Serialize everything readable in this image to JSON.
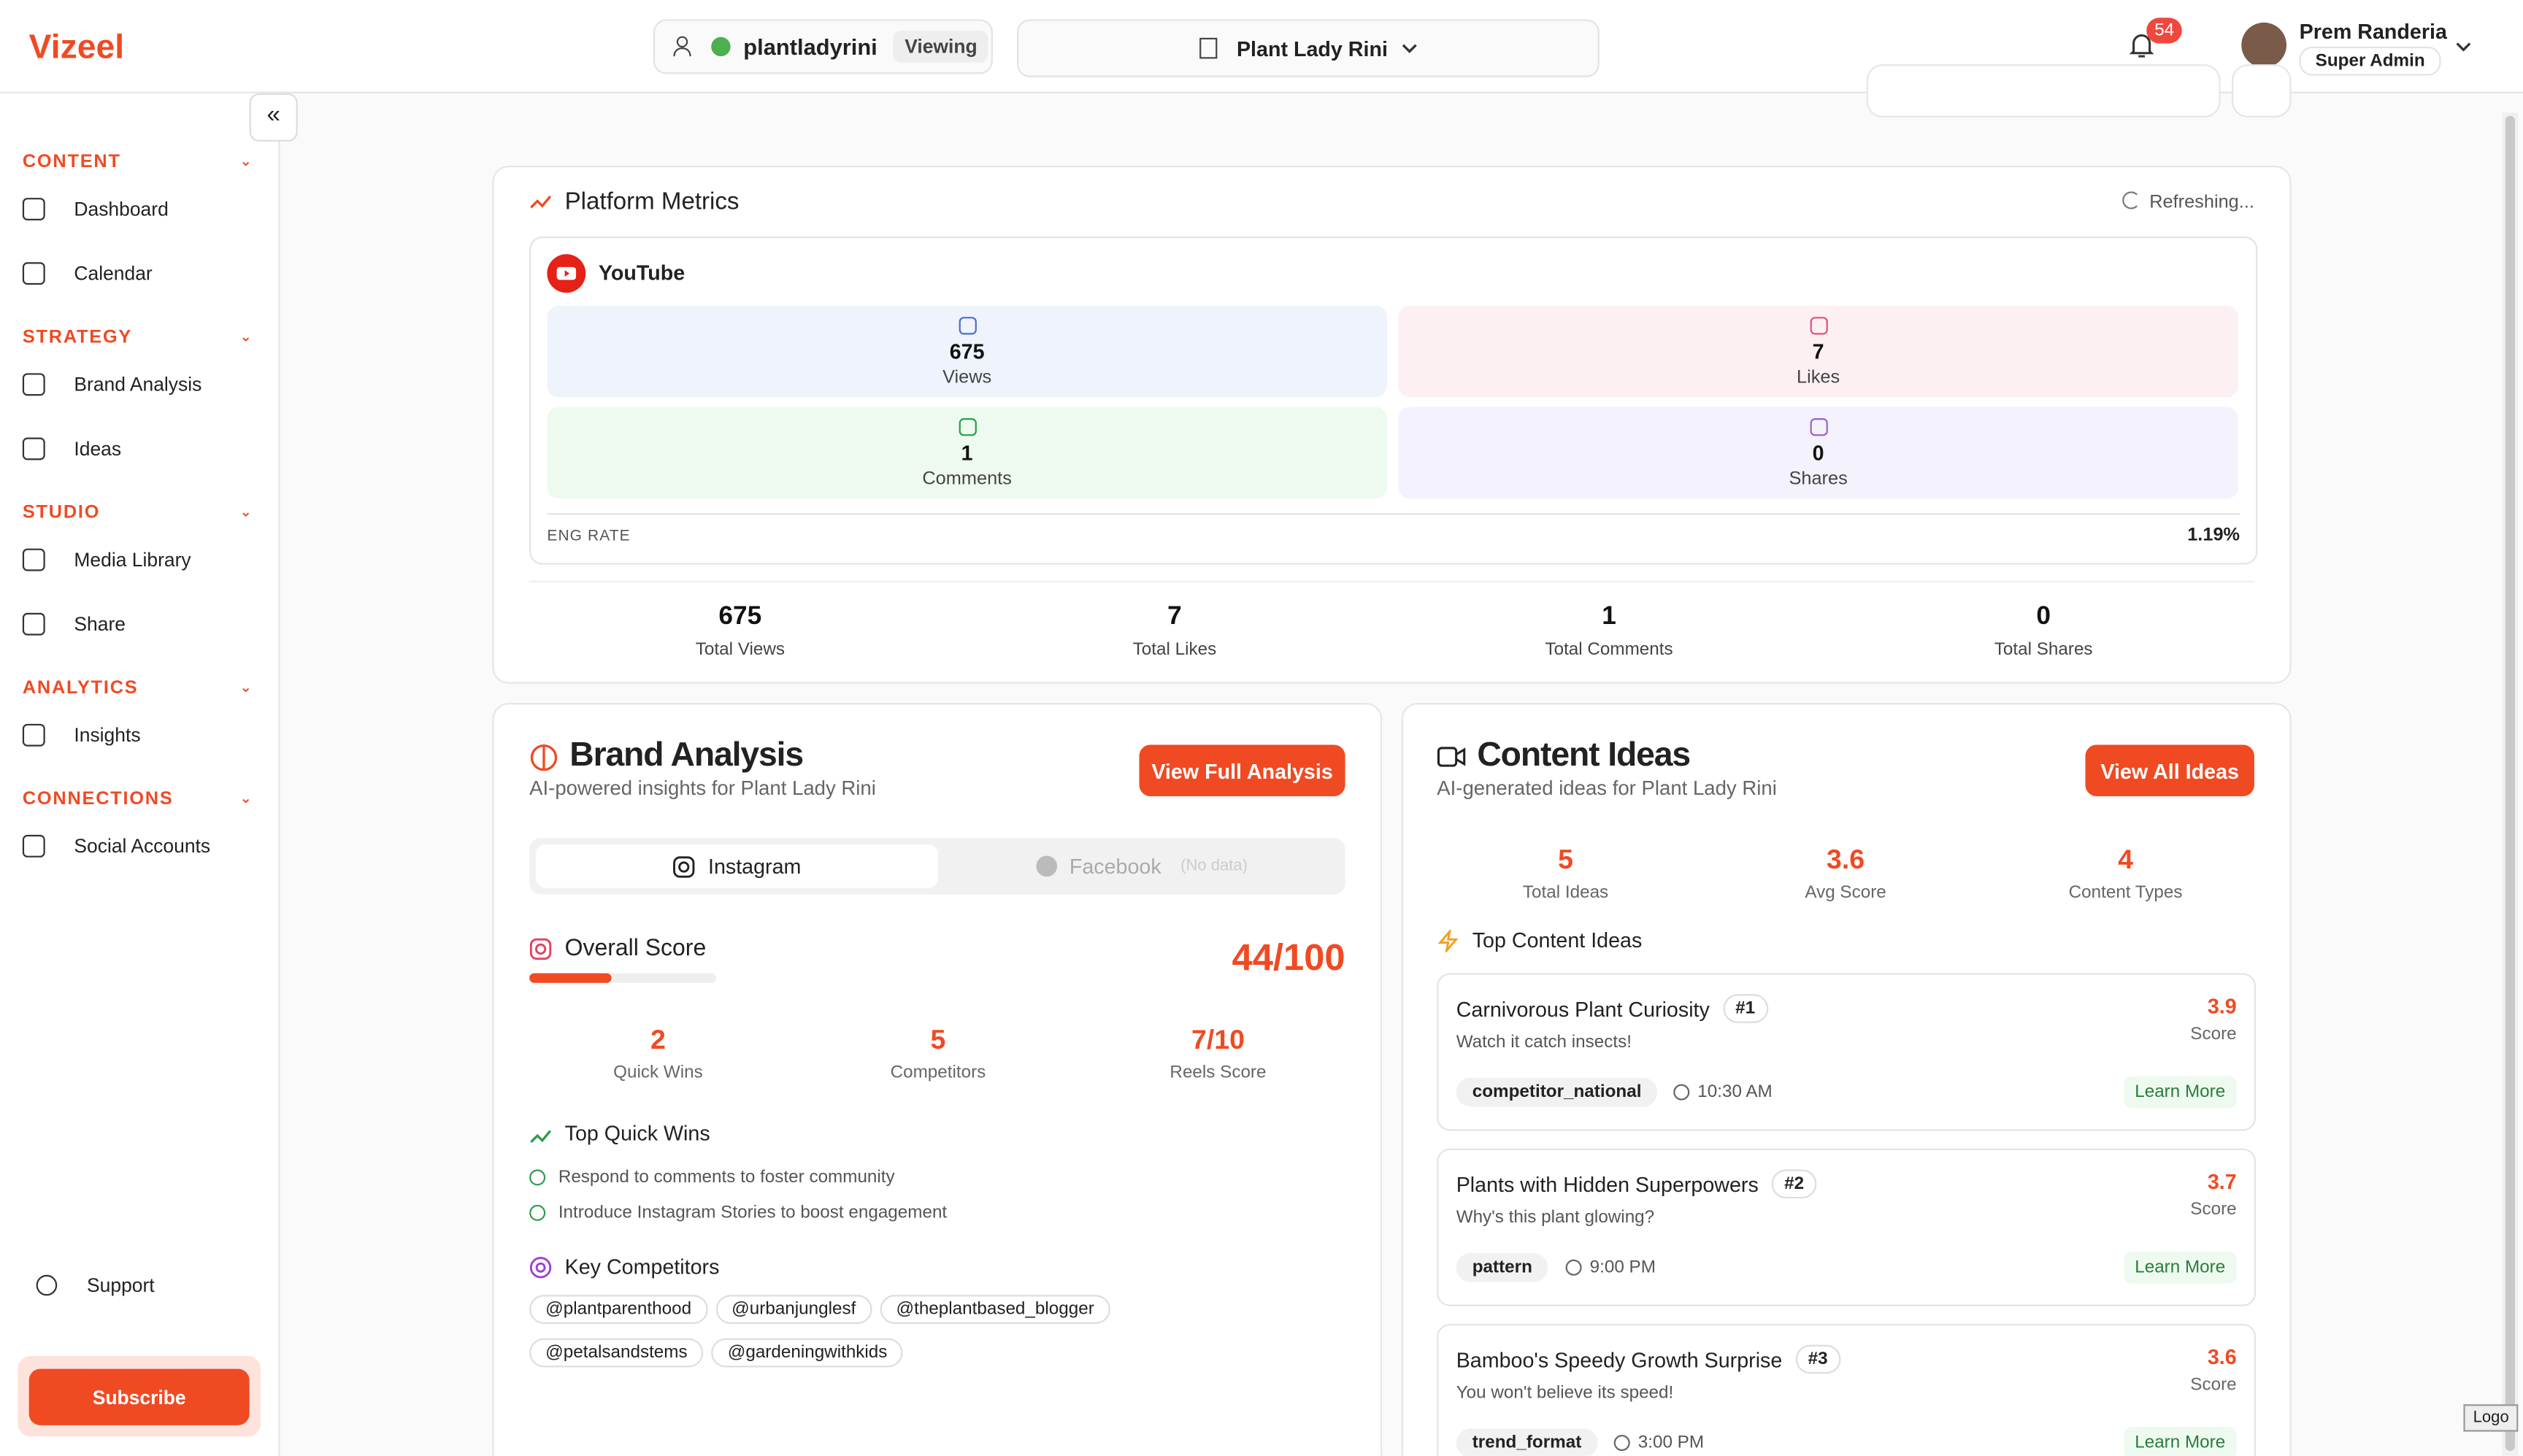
{
  "header": {
    "logo": "Vizeel",
    "account": "plantladyrini",
    "status": "Viewing",
    "brand": "Plant Lady Rini",
    "notifications": "54",
    "user_name": "Prem Randeria",
    "user_role": "Super Admin"
  },
  "sidebar": {
    "sections": [
      {
        "title": "CONTENT",
        "items": [
          "Dashboard",
          "Calendar"
        ]
      },
      {
        "title": "STRATEGY",
        "items": [
          "Brand Analysis",
          "Ideas"
        ]
      },
      {
        "title": "STUDIO",
        "items": [
          "Media Library",
          "Share"
        ]
      },
      {
        "title": "ANALYTICS",
        "items": [
          "Insights"
        ]
      },
      {
        "title": "CONNECTIONS",
        "items": [
          "Social Accounts"
        ]
      }
    ],
    "support": "Support",
    "subscribe": "Subscribe"
  },
  "platform_metrics": {
    "title": "Platform Metrics",
    "status": "Refreshing...",
    "platform": "YouTube",
    "metrics": [
      {
        "value": "675",
        "label": "Views"
      },
      {
        "value": "7",
        "label": "Likes"
      },
      {
        "value": "1",
        "label": "Comments"
      },
      {
        "value": "0",
        "label": "Shares"
      }
    ],
    "eng_rate_label": "ENG RATE",
    "eng_rate": "1.19%",
    "totals": [
      {
        "value": "675",
        "label": "Total Views"
      },
      {
        "value": "7",
        "label": "Total Likes"
      },
      {
        "value": "1",
        "label": "Total Comments"
      },
      {
        "value": "0",
        "label": "Total Shares"
      }
    ]
  },
  "brand_analysis": {
    "title": "Brand Analysis",
    "subtitle": "AI-powered insights for Plant Lady Rini",
    "button": "View Full Analysis",
    "tabs": [
      "Instagram",
      "Facebook"
    ],
    "tab_note": "(No data)",
    "score_title": "Overall Score",
    "score": "44/100",
    "stats": [
      {
        "value": "2",
        "label": "Quick Wins"
      },
      {
        "value": "5",
        "label": "Competitors"
      },
      {
        "value": "7/10",
        "label": "Reels Score"
      }
    ],
    "quick_wins_title": "Top Quick Wins",
    "quick_wins": [
      "Respond to comments to foster community",
      "Introduce Instagram Stories to boost engagement"
    ],
    "competitors_title": "Key Competitors",
    "competitors": [
      "@plantparenthood",
      "@urbanjunglesf",
      "@theplantbased_blogger",
      "@petalsandstems",
      "@gardeningwithkids"
    ]
  },
  "content_ideas": {
    "title": "Content Ideas",
    "subtitle": "AI-generated ideas for Plant Lady Rini",
    "button": "View All Ideas",
    "stats": [
      {
        "value": "5",
        "label": "Total Ideas"
      },
      {
        "value": "3.6",
        "label": "Avg Score"
      },
      {
        "value": "4",
        "label": "Content Types"
      }
    ],
    "top_title": "Top Content Ideas",
    "ideas": [
      {
        "title": "Carnivorous Plant Curiosity",
        "rank": "#1",
        "description": "Watch it catch insects!",
        "tag": "competitor_national",
        "time": "10:30 AM",
        "score": "3.9",
        "score_label": "Score",
        "link": "Learn More"
      },
      {
        "title": "Plants with Hidden Superpowers",
        "rank": "#2",
        "description": "Why's this plant glowing?",
        "tag": "pattern",
        "time": "9:00 PM",
        "score": "3.7",
        "score_label": "Score",
        "link": "Learn More"
      },
      {
        "title": "Bamboo's Speedy Growth Surprise",
        "rank": "#3",
        "description": "You won't believe its speed!",
        "tag": "trend_format",
        "time": "3:00 PM",
        "score": "3.6",
        "score_label": "Score",
        "link": "Learn More"
      }
    ]
  },
  "logo_badge": "Logo"
}
